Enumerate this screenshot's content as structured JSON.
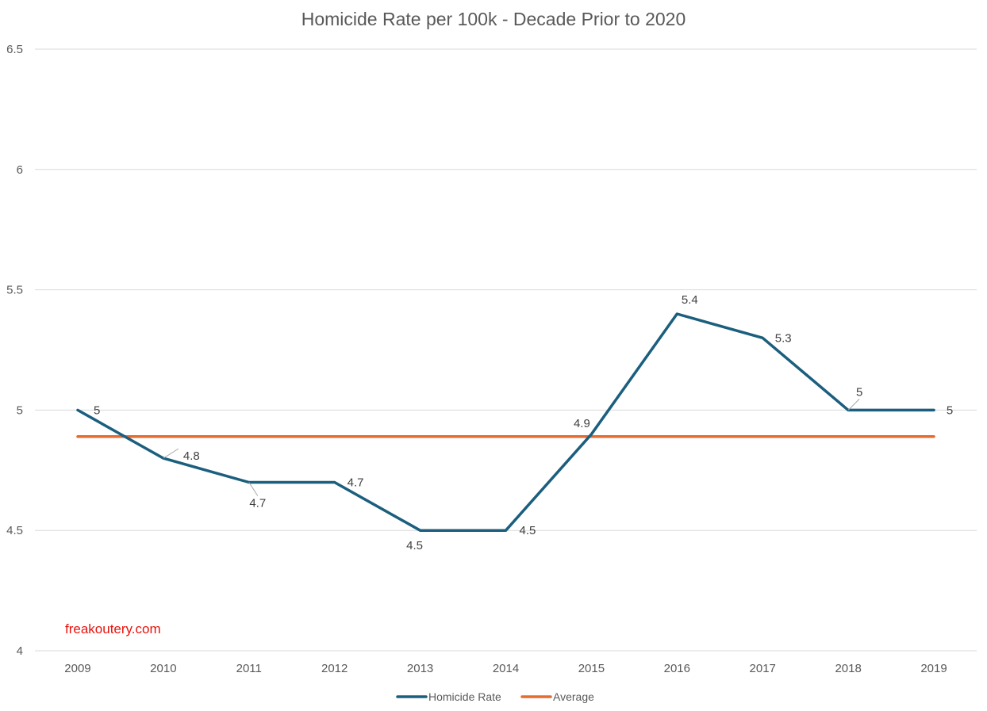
{
  "chart_data": {
    "type": "line",
    "title": "Homicide Rate per 100k - Decade Prior to 2020",
    "xlabel": "",
    "ylabel": "",
    "categories": [
      "2009",
      "2010",
      "2011",
      "2012",
      "2013",
      "2014",
      "2015",
      "2016",
      "2017",
      "2018",
      "2019"
    ],
    "ylim": [
      4,
      6.5
    ],
    "yticks": [
      {
        "value": 4,
        "label": "4"
      },
      {
        "value": 4.5,
        "label": "4.5"
      },
      {
        "value": 5,
        "label": "5"
      },
      {
        "value": 5.5,
        "label": "5.5"
      },
      {
        "value": 6,
        "label": "6"
      },
      {
        "value": 6.5,
        "label": "6.5"
      }
    ],
    "grid": true,
    "legend_position": "bottom",
    "series": [
      {
        "name": "Homicide Rate",
        "color": "#1b5e7e",
        "values": [
          5,
          4.8,
          4.7,
          4.7,
          4.5,
          4.5,
          4.9,
          5.4,
          5.3,
          5,
          5
        ],
        "data_labels": [
          "5",
          "4.8",
          "4.7",
          "4.7",
          "4.5",
          "4.5",
          "4.9",
          "5.4",
          "5.3",
          "5",
          "5"
        ]
      },
      {
        "name": "Average",
        "color": "#e46c2e",
        "values": [
          4.89,
          4.89,
          4.89,
          4.89,
          4.89,
          4.89,
          4.89,
          4.89,
          4.89,
          4.89,
          4.89
        ]
      }
    ],
    "watermark": "freakoutery.com"
  }
}
